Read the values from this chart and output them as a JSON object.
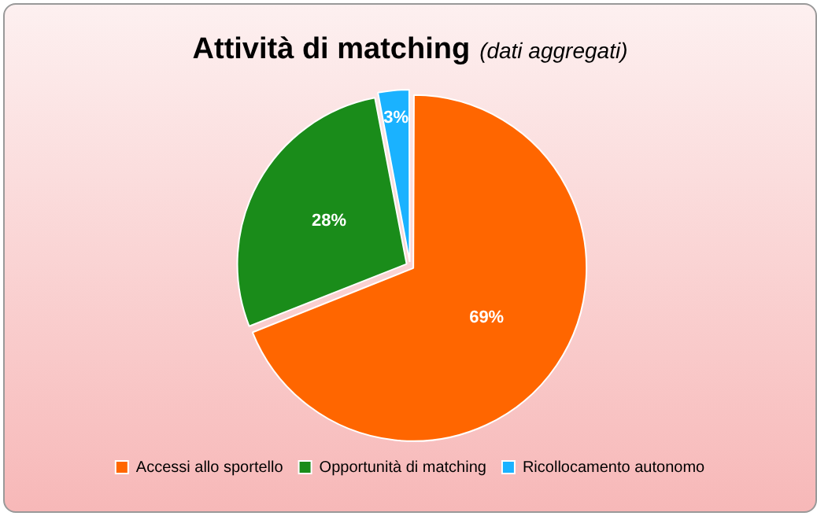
{
  "chart_data": {
    "type": "pie",
    "title": "Attività di matching",
    "subtitle": "(dati aggregati)",
    "categories": [
      "Accessi allo sportello",
      "Opportunità di matching",
      "Ricollocamento autonomo"
    ],
    "values": [
      69,
      28,
      3
    ],
    "colors": [
      "#ff6600",
      "#1a8c1a",
      "#1ab2ff"
    ],
    "value_labels": [
      "69%",
      "28%",
      "3%"
    ],
    "legend": "bottom"
  }
}
